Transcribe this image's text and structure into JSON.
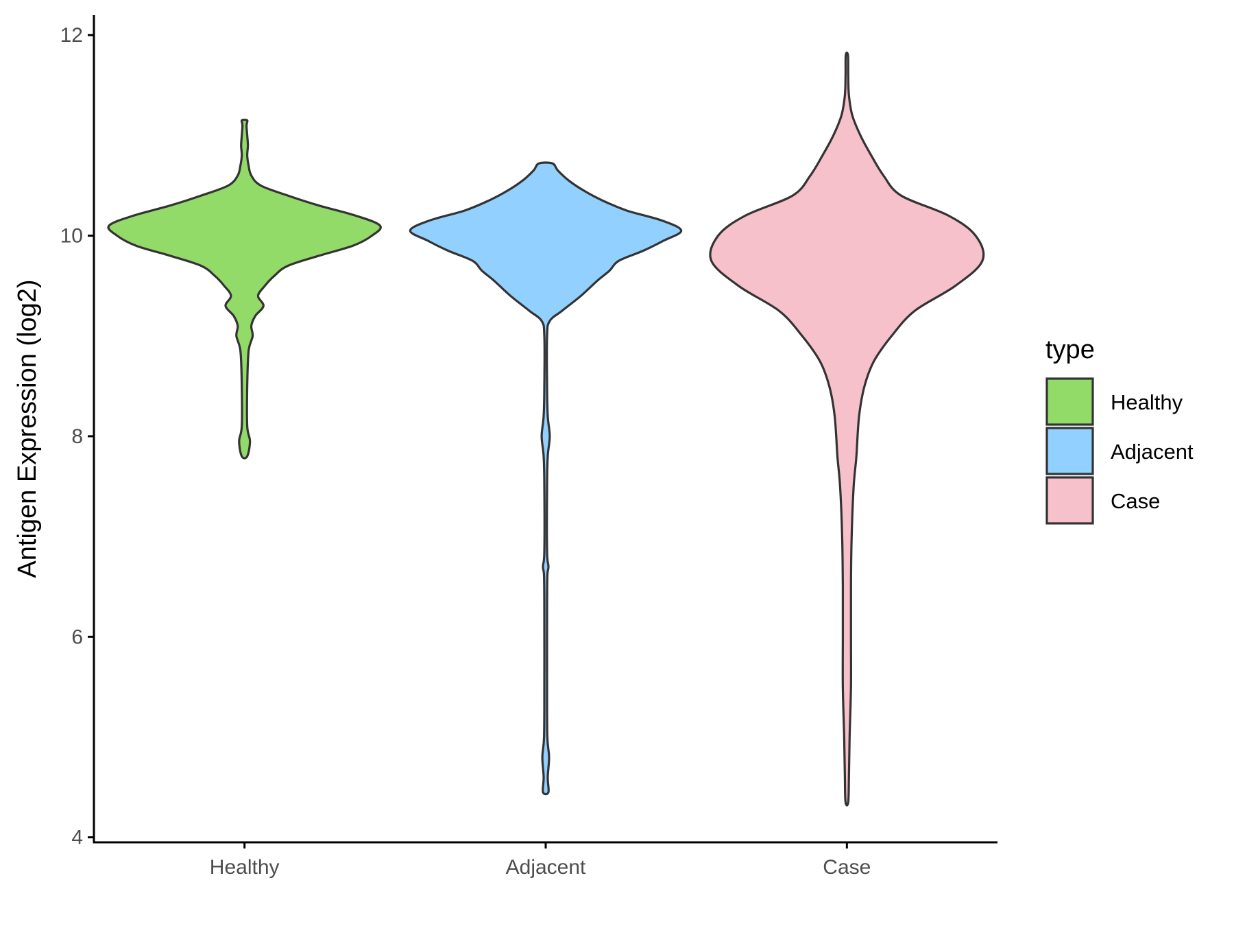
{
  "chart_data": {
    "type": "violin",
    "xlabel": "",
    "ylabel": "Antigen Expression (log2)",
    "ylim": [
      3.95,
      12.2
    ],
    "yticks": [
      4,
      6,
      8,
      10,
      12
    ],
    "categories": [
      "Healthy",
      "Adjacent",
      "Case"
    ],
    "grid": false,
    "legend": {
      "title": "type",
      "position": "right",
      "entries": [
        {
          "label": "Healthy",
          "color": "#93DB69"
        },
        {
          "label": "Adjacent",
          "color": "#92D1FF"
        },
        {
          "label": "Case",
          "color": "#F7C1CB"
        }
      ]
    },
    "series": [
      {
        "category": "Healthy",
        "color": "#93DB69",
        "density": [
          [
            7.8,
            0.02
          ],
          [
            7.95,
            0.04
          ],
          [
            8.1,
            0.02
          ],
          [
            8.5,
            0.02
          ],
          [
            8.85,
            0.03
          ],
          [
            9.0,
            0.06
          ],
          [
            9.1,
            0.05
          ],
          [
            9.2,
            0.08
          ],
          [
            9.3,
            0.14
          ],
          [
            9.4,
            0.1
          ],
          [
            9.5,
            0.15
          ],
          [
            9.6,
            0.22
          ],
          [
            9.7,
            0.32
          ],
          [
            9.8,
            0.55
          ],
          [
            9.9,
            0.8
          ],
          [
            10.0,
            0.94
          ],
          [
            10.1,
            1.0
          ],
          [
            10.2,
            0.82
          ],
          [
            10.3,
            0.55
          ],
          [
            10.4,
            0.32
          ],
          [
            10.5,
            0.12
          ],
          [
            10.6,
            0.05
          ],
          [
            10.7,
            0.03
          ],
          [
            10.8,
            0.02
          ],
          [
            10.9,
            0.025
          ],
          [
            11.0,
            0.02
          ],
          [
            11.1,
            0.015
          ],
          [
            11.15,
            0.02
          ]
        ]
      },
      {
        "category": "Adjacent",
        "color": "#92D1FF",
        "density": [
          [
            4.45,
            0.02
          ],
          [
            4.6,
            0.015
          ],
          [
            4.8,
            0.025
          ],
          [
            5.0,
            0.012
          ],
          [
            5.5,
            0.01
          ],
          [
            6.2,
            0.01
          ],
          [
            6.6,
            0.012
          ],
          [
            6.7,
            0.02
          ],
          [
            6.85,
            0.01
          ],
          [
            7.5,
            0.01
          ],
          [
            7.8,
            0.015
          ],
          [
            8.0,
            0.03
          ],
          [
            8.2,
            0.015
          ],
          [
            8.5,
            0.01
          ],
          [
            9.0,
            0.01
          ],
          [
            9.15,
            0.03
          ],
          [
            9.25,
            0.12
          ],
          [
            9.4,
            0.26
          ],
          [
            9.55,
            0.38
          ],
          [
            9.65,
            0.47
          ],
          [
            9.75,
            0.54
          ],
          [
            9.85,
            0.72
          ],
          [
            9.95,
            0.87
          ],
          [
            10.05,
            1.0
          ],
          [
            10.15,
            0.86
          ],
          [
            10.25,
            0.6
          ],
          [
            10.35,
            0.42
          ],
          [
            10.45,
            0.28
          ],
          [
            10.55,
            0.17
          ],
          [
            10.65,
            0.09
          ],
          [
            10.72,
            0.05
          ]
        ]
      },
      {
        "category": "Case",
        "color": "#F7C1CB",
        "density": [
          [
            4.35,
            0.01
          ],
          [
            4.6,
            0.015
          ],
          [
            5.0,
            0.02
          ],
          [
            5.5,
            0.03
          ],
          [
            6.0,
            0.03
          ],
          [
            6.5,
            0.03
          ],
          [
            7.0,
            0.035
          ],
          [
            7.5,
            0.05
          ],
          [
            7.8,
            0.07
          ],
          [
            8.2,
            0.09
          ],
          [
            8.5,
            0.13
          ],
          [
            8.75,
            0.2
          ],
          [
            9.0,
            0.33
          ],
          [
            9.25,
            0.5
          ],
          [
            9.5,
            0.8
          ],
          [
            9.75,
            1.0
          ],
          [
            10.0,
            0.95
          ],
          [
            10.2,
            0.75
          ],
          [
            10.4,
            0.4
          ],
          [
            10.6,
            0.27
          ],
          [
            10.8,
            0.18
          ],
          [
            11.0,
            0.1
          ],
          [
            11.2,
            0.04
          ],
          [
            11.4,
            0.015
          ],
          [
            11.6,
            0.01
          ],
          [
            11.8,
            0.008
          ]
        ]
      }
    ]
  }
}
